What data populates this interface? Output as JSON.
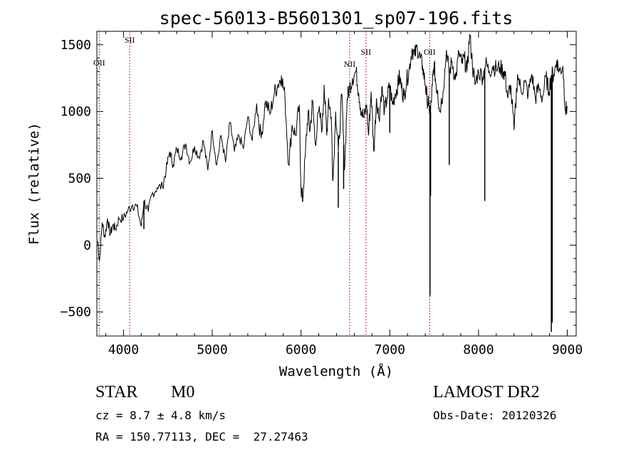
{
  "chart_data": {
    "type": "line",
    "title": "spec-56013-B5601301_sp07-196.fits",
    "xlabel": "Wavelength (Å)",
    "ylabel": "Flux (relative)",
    "xlim": [
      3700,
      9100
    ],
    "ylim": [
      -680,
      1600
    ],
    "x_ticks": [
      4000,
      5000,
      6000,
      7000,
      8000,
      9000
    ],
    "y_ticks": [
      -500,
      0,
      500,
      1000,
      1500
    ],
    "grid": false,
    "line_color": "#000000",
    "marker_color": "#cc2222",
    "emission_lines": [
      {
        "name": "OII",
        "wavelength": 3727
      },
      {
        "name": "SII",
        "wavelength": 4070
      },
      {
        "name": "NII",
        "wavelength": 6548
      },
      {
        "name": "SII",
        "wavelength": 6731
      },
      {
        "name": "OII",
        "wavelength": 7450
      }
    ],
    "series": [
      {
        "values": [
          [
            3710,
            30
          ],
          [
            3730,
            -120
          ],
          [
            3760,
            170
          ],
          [
            3790,
            60
          ],
          [
            3820,
            200
          ],
          [
            3850,
            80
          ],
          [
            3880,
            150
          ],
          [
            3910,
            120
          ],
          [
            3950,
            200
          ],
          [
            4000,
            200
          ],
          [
            4050,
            260
          ],
          [
            4100,
            300
          ],
          [
            4150,
            290
          ],
          [
            4200,
            140
          ],
          [
            4230,
            330
          ],
          [
            4280,
            250
          ],
          [
            4320,
            380
          ],
          [
            4380,
            430
          ],
          [
            4440,
            440
          ],
          [
            4480,
            560
          ],
          [
            4520,
            700
          ],
          [
            4560,
            600
          ],
          [
            4600,
            720
          ],
          [
            4650,
            660
          ],
          [
            4700,
            760
          ],
          [
            4750,
            620
          ],
          [
            4800,
            740
          ],
          [
            4850,
            660
          ],
          [
            4900,
            780
          ],
          [
            4950,
            560
          ],
          [
            5000,
            860
          ],
          [
            5050,
            600
          ],
          [
            5100,
            820
          ],
          [
            5150,
            620
          ],
          [
            5200,
            920
          ],
          [
            5250,
            700
          ],
          [
            5300,
            820
          ],
          [
            5350,
            720
          ],
          [
            5400,
            960
          ],
          [
            5450,
            780
          ],
          [
            5500,
            1060
          ],
          [
            5550,
            800
          ],
          [
            5600,
            1080
          ],
          [
            5650,
            980
          ],
          [
            5700,
            1140
          ],
          [
            5740,
            1200
          ],
          [
            5780,
            1270
          ],
          [
            5820,
            1100
          ],
          [
            5860,
            600
          ],
          [
            5900,
            900
          ],
          [
            5940,
            820
          ],
          [
            5980,
            1050
          ],
          [
            6000,
            420
          ],
          [
            6020,
            340
          ],
          [
            6050,
            700
          ],
          [
            6080,
            1000
          ],
          [
            6100,
            850
          ],
          [
            6130,
            1080
          ],
          [
            6160,
            760
          ],
          [
            6200,
            1000
          ],
          [
            6240,
            880
          ],
          [
            6260,
            1200
          ],
          [
            6290,
            820
          ],
          [
            6310,
            1100
          ],
          [
            6340,
            960
          ],
          [
            6360,
            480
          ],
          [
            6390,
            1000
          ],
          [
            6420,
            700
          ],
          [
            6460,
            1130
          ],
          [
            6490,
            560
          ],
          [
            6520,
            1100
          ],
          [
            6548,
            1180
          ],
          [
            6580,
            1250
          ],
          [
            6620,
            1300
          ],
          [
            6650,
            1140
          ],
          [
            6680,
            1000
          ],
          [
            6710,
            950
          ],
          [
            6740,
            1050
          ],
          [
            6760,
            820
          ],
          [
            6790,
            1150
          ],
          [
            6820,
            700
          ],
          [
            6850,
            1100
          ],
          [
            6880,
            950
          ],
          [
            6910,
            1180
          ],
          [
            6940,
            1000
          ],
          [
            6970,
            1100
          ],
          [
            7000,
            1200
          ],
          [
            7030,
            1050
          ],
          [
            7060,
            1130
          ],
          [
            7090,
            1200
          ],
          [
            7110,
            1260
          ],
          [
            7140,
            1150
          ],
          [
            7160,
            1120
          ],
          [
            7190,
            1230
          ],
          [
            7220,
            1320
          ],
          [
            7250,
            1470
          ],
          [
            7280,
            1420
          ],
          [
            7310,
            1480
          ],
          [
            7340,
            1400
          ],
          [
            7370,
            1340
          ],
          [
            7400,
            1200
          ],
          [
            7420,
            1100
          ],
          [
            7440,
            1040
          ],
          [
            7460,
            1000
          ],
          [
            7480,
            1200
          ],
          [
            7500,
            1360
          ],
          [
            7520,
            1200
          ],
          [
            7540,
            1160
          ],
          [
            7560,
            1000
          ],
          [
            7600,
            1150
          ],
          [
            7640,
            1460
          ],
          [
            7670,
            1280
          ],
          [
            7700,
            1380
          ],
          [
            7740,
            1240
          ],
          [
            7780,
            1440
          ],
          [
            7810,
            1360
          ],
          [
            7840,
            1400
          ],
          [
            7870,
            1300
          ],
          [
            7900,
            1580
          ],
          [
            7930,
            1360
          ],
          [
            7960,
            1200
          ],
          [
            8000,
            1300
          ],
          [
            8050,
            1260
          ],
          [
            8080,
            1360
          ],
          [
            8120,
            1300
          ],
          [
            8160,
            1340
          ],
          [
            8200,
            1320
          ],
          [
            8240,
            1330
          ],
          [
            8280,
            1300
          ],
          [
            8300,
            1270
          ],
          [
            8330,
            1100
          ],
          [
            8360,
            1200
          ],
          [
            8400,
            860
          ],
          [
            8440,
            1280
          ],
          [
            8480,
            1150
          ],
          [
            8520,
            1220
          ],
          [
            8560,
            1130
          ],
          [
            8600,
            1280
          ],
          [
            8640,
            1100
          ],
          [
            8680,
            1180
          ],
          [
            8720,
            1100
          ],
          [
            8760,
            1260
          ],
          [
            8790,
            1150
          ],
          [
            8820,
            1270
          ],
          [
            8850,
            1280
          ],
          [
            8880,
            1380
          ],
          [
            8910,
            1300
          ],
          [
            8950,
            1340
          ],
          [
            8980,
            1000
          ],
          [
            9000,
            1040
          ]
        ]
      }
    ],
    "spikes": [
      {
        "x": 4230,
        "y": 120
      },
      {
        "x": 6020,
        "y": 330
      },
      {
        "x": 6420,
        "y": 280
      },
      {
        "x": 6480,
        "y": 420
      },
      {
        "x": 7000,
        "y": 840
      },
      {
        "x": 7453,
        "y": -380
      },
      {
        "x": 7460,
        "y": 370
      },
      {
        "x": 7670,
        "y": 600
      },
      {
        "x": 8070,
        "y": 330
      },
      {
        "x": 8820,
        "y": -650
      },
      {
        "x": 8830,
        "y": -580
      }
    ]
  },
  "info": {
    "object_type": "STAR",
    "subclass": "M0",
    "survey": "LAMOST DR2",
    "cz": "cz = 8.7 ± 4.8 km/s",
    "obs_date": "Obs-Date: 20120326",
    "coords": "RA = 150.77113, DEC =  27.27463"
  }
}
